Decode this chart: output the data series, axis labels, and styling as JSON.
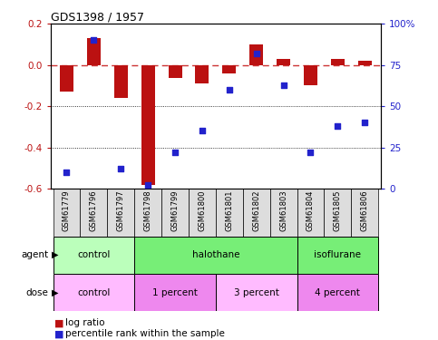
{
  "title": "GDS1398 / 1957",
  "samples": [
    "GSM61779",
    "GSM61796",
    "GSM61797",
    "GSM61798",
    "GSM61799",
    "GSM61800",
    "GSM61801",
    "GSM61802",
    "GSM61803",
    "GSM61804",
    "GSM61805",
    "GSM61806"
  ],
  "log_ratio": [
    -0.13,
    0.13,
    -0.16,
    -0.58,
    -0.065,
    -0.09,
    -0.04,
    0.1,
    0.03,
    -0.1,
    0.03,
    0.02
  ],
  "pct_rank": [
    10,
    90,
    12,
    2,
    22,
    35,
    60,
    82,
    63,
    22,
    38,
    40
  ],
  "bar_color": "#bb1111",
  "dot_color": "#2222cc",
  "ref_line_color": "#cc3333",
  "ylim_left": [
    -0.6,
    0.2
  ],
  "ylim_right": [
    0,
    100
  ],
  "yticks_left": [
    -0.6,
    -0.4,
    -0.2,
    0.0,
    0.2
  ],
  "yticks_right": [
    0,
    25,
    50,
    75,
    100
  ],
  "ytick_labels_right": [
    "0",
    "25",
    "50",
    "75",
    "100%"
  ],
  "agent_groups": [
    {
      "label": "control",
      "start": 0,
      "end": 3,
      "color": "#bbffbb"
    },
    {
      "label": "halothane",
      "start": 3,
      "end": 9,
      "color": "#77ee77"
    },
    {
      "label": "isoflurane",
      "start": 9,
      "end": 12,
      "color": "#77ee77"
    }
  ],
  "dose_groups": [
    {
      "label": "control",
      "start": 0,
      "end": 3,
      "color": "#ffbbff"
    },
    {
      "label": "1 percent",
      "start": 3,
      "end": 6,
      "color": "#ee88ee"
    },
    {
      "label": "3 percent",
      "start": 6,
      "end": 9,
      "color": "#ffbbff"
    },
    {
      "label": "4 percent",
      "start": 9,
      "end": 12,
      "color": "#ee88ee"
    }
  ],
  "legend_items": [
    {
      "label": "log ratio",
      "color": "#bb1111"
    },
    {
      "label": "percentile rank within the sample",
      "color": "#2222cc"
    }
  ]
}
